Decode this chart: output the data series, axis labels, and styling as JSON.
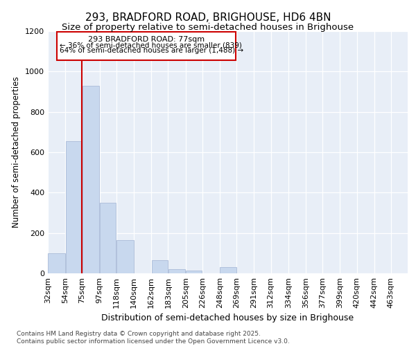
{
  "title": "293, BRADFORD ROAD, BRIGHOUSE, HD6 4BN",
  "subtitle": "Size of property relative to semi-detached houses in Brighouse",
  "xlabel": "Distribution of semi-detached houses by size in Brighouse",
  "ylabel": "Number of semi-detached properties",
  "bins": [
    32,
    54,
    75,
    97,
    118,
    140,
    162,
    183,
    205,
    226,
    248,
    269,
    291,
    312,
    334,
    356,
    377,
    399,
    420,
    442,
    463
  ],
  "bin_labels": [
    "32sqm",
    "54sqm",
    "75sqm",
    "97sqm",
    "118sqm",
    "140sqm",
    "162sqm",
    "183sqm",
    "205sqm",
    "226sqm",
    "248sqm",
    "269sqm",
    "291sqm",
    "312sqm",
    "334sqm",
    "356sqm",
    "377sqm",
    "399sqm",
    "420sqm",
    "442sqm",
    "463sqm"
  ],
  "values": [
    100,
    655,
    930,
    350,
    165,
    0,
    65,
    20,
    15,
    0,
    30,
    0,
    0,
    0,
    0,
    0,
    0,
    0,
    0,
    0,
    0
  ],
  "bar_color": "#c8d8ee",
  "bar_edge_color": "#aabbd8",
  "vline_x": 75,
  "vline_color": "#cc0000",
  "annotation_line1": "293 BRADFORD ROAD: 77sqm",
  "annotation_line2": "← 36% of semi-detached houses are smaller (839)",
  "annotation_line3": "64% of semi-detached houses are larger (1,488) →",
  "annotation_box_color": "#ffffff",
  "annotation_box_edge": "#cc0000",
  "ylim": [
    0,
    1200
  ],
  "yticks": [
    0,
    200,
    400,
    600,
    800,
    1000,
    1200
  ],
  "background_color": "#e8eef7",
  "footer_text": "Contains HM Land Registry data © Crown copyright and database right 2025.\nContains public sector information licensed under the Open Government Licence v3.0.",
  "title_fontsize": 11,
  "subtitle_fontsize": 9.5,
  "ylabel_fontsize": 8.5,
  "xlabel_fontsize": 9,
  "tick_fontsize": 8,
  "annot_fontsize": 8,
  "footer_fontsize": 6.5
}
